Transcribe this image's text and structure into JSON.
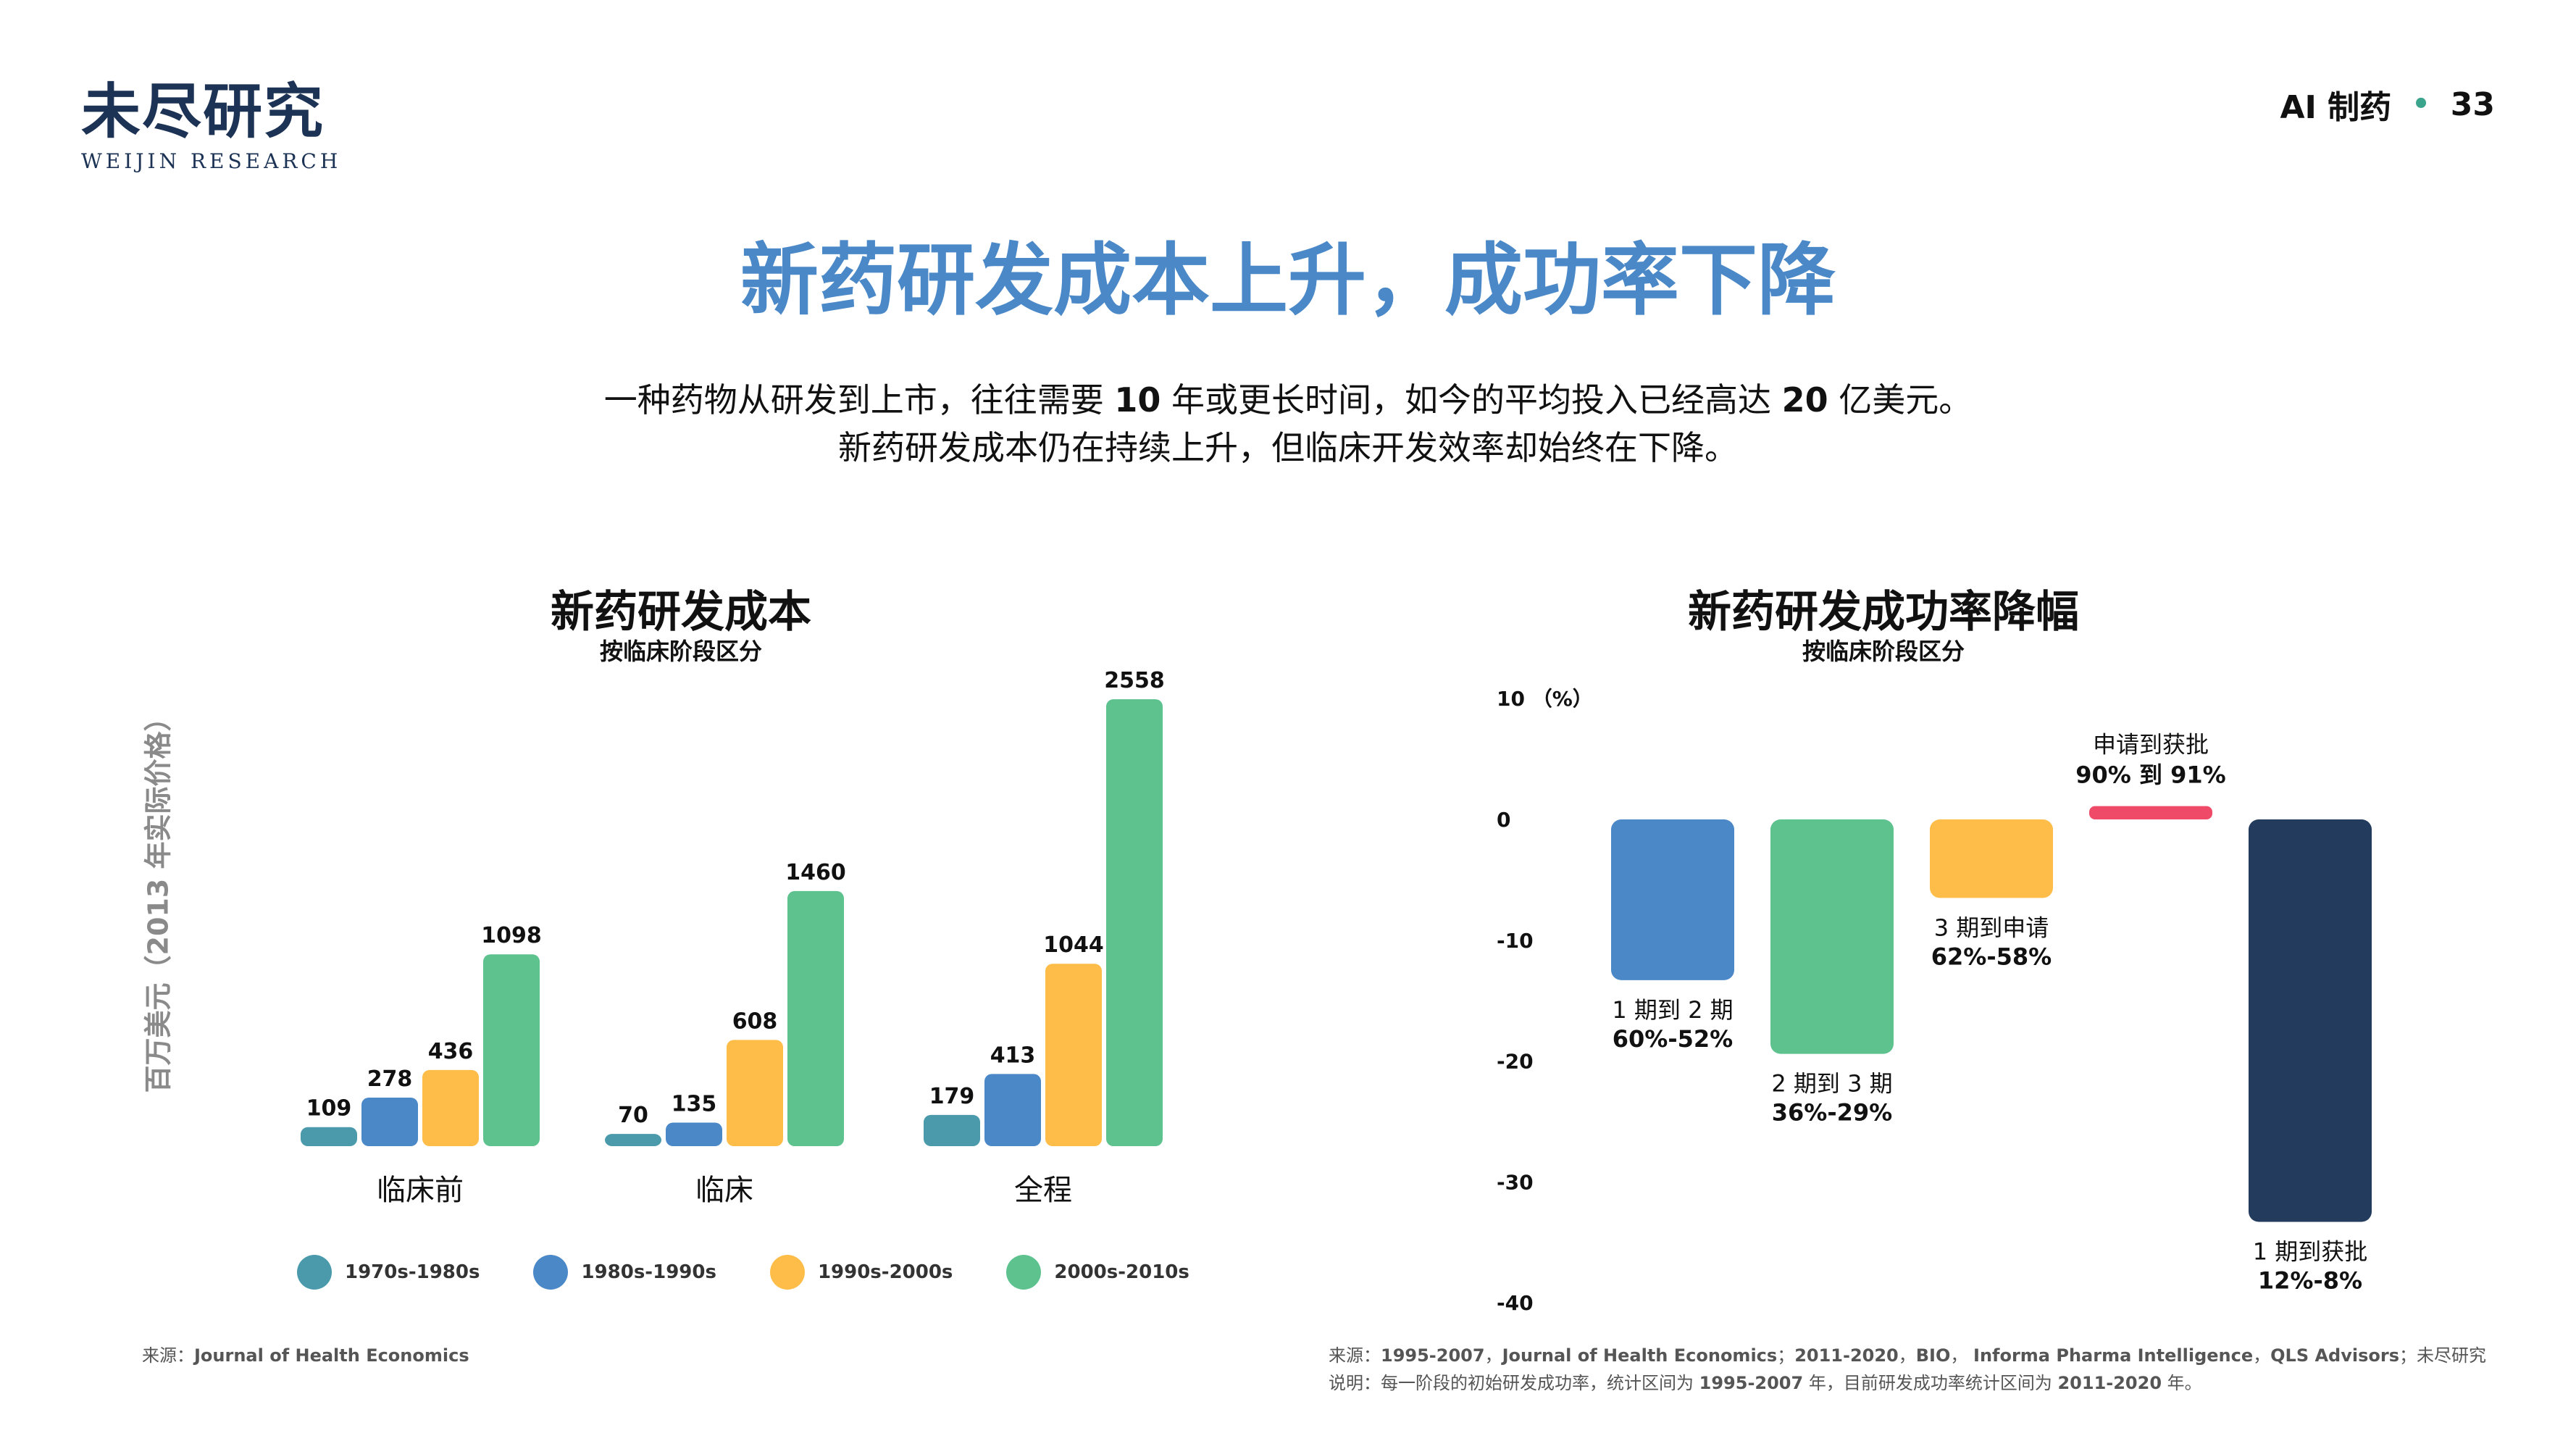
{
  "brand": {
    "logo_cn": "未尽研究",
    "logo_en": "WEIJIN RESEARCH"
  },
  "header": {
    "section": "AI 制药",
    "separator": "•",
    "page": "33"
  },
  "title": "新药研发成本上升，成功率下降",
  "subtitle": {
    "line1_a": "一种药物从研发到上市，往往需要 ",
    "line1_b": "10",
    "line1_c": " 年或更长时间，如今的平均投入已经高达 ",
    "line1_d": "20",
    "line1_e": " 亿美元。",
    "line2": "新药研发成本仍在持续上升，但临床开发效率却始终在下降。"
  },
  "chart_data": [
    {
      "type": "bar",
      "title": "新药研发成本",
      "subtitle": "按临床阶段区分",
      "ylabel": "百万美元（2013 年实际价格）",
      "categories": [
        "临床前",
        "临床",
        "全程"
      ],
      "series": [
        {
          "name": "1970s-1980s",
          "color": "#4a9aac",
          "values": [
            109,
            70,
            179
          ]
        },
        {
          "name": "1980s-1990s",
          "color": "#4a88c8",
          "values": [
            278,
            135,
            413
          ]
        },
        {
          "name": "1990s-2000s",
          "color": "#fdbd48",
          "values": [
            436,
            608,
            1044
          ]
        },
        {
          "name": "2000s-2010s",
          "color": "#5ec28f",
          "values": [
            1098,
            1460,
            2558
          ]
        }
      ],
      "ylim": [
        0,
        2600
      ],
      "legend": "bottom",
      "grid": false
    },
    {
      "type": "bar",
      "title": "新药研发成功率降幅",
      "subtitle": "按临床阶段区分",
      "yunit": "（%）",
      "yticks": [
        10,
        0,
        -10,
        -20,
        -30,
        -40
      ],
      "ylim": [
        -40,
        10
      ],
      "grid": false,
      "bars": [
        {
          "label_a": "1 期到 2 期",
          "label_b": "60%-52%",
          "value": -13.3,
          "color": "#4a88c8",
          "label_pos": "below"
        },
        {
          "label_a": "2 期到 3 期",
          "label_b": "36%-29%",
          "value": -19.4,
          "color": "#5ec28f",
          "label_pos": "below"
        },
        {
          "label_a": "3 期到申请",
          "label_b": "62%-58%",
          "value": -6.5,
          "color": "#fdbd48",
          "label_pos": "below"
        },
        {
          "label_a": "申请到获批",
          "label_b": "90% 到 91%",
          "value": 1.1,
          "color": "#ef4b68",
          "label_pos": "above"
        },
        {
          "label_a": "1 期到获批",
          "label_b": "12%-8%",
          "value": -33.3,
          "color": "#233b5c",
          "label_pos": "below"
        }
      ]
    }
  ],
  "sources": {
    "left": {
      "prefix": "来源：",
      "text": "Journal of Health Economics"
    },
    "right_line1": {
      "prefix": "来源：",
      "p1": "1995-2007",
      "s1": "，",
      "p2": "Journal of Health Economics",
      "s2": "；",
      "p3": "2011-2020",
      "s3": "，",
      "p4": "BIO",
      "s4": "， ",
      "p5": "Informa Pharma Intelligence",
      "s5": "，",
      "p6": "QLS Advisors",
      "s6": "；未尽研究"
    },
    "right_line2": {
      "prefix": "说明：每一阶段的初始研发成功率，统计区间为 ",
      "p1": "1995-2007",
      "s1": " 年，目前研发成功率统计区间为 ",
      "p2": "2011-2020",
      "s2": " 年。"
    }
  }
}
